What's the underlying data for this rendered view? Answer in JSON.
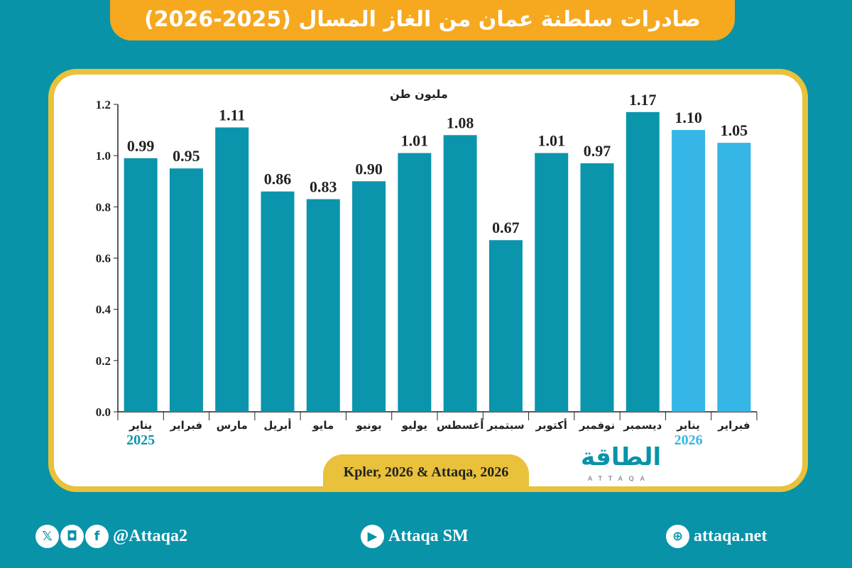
{
  "title": "صادرات سلطنة عمان من الغاز المسال (2025-2026)",
  "chart_data": {
    "type": "bar",
    "title": "صادرات سلطنة عمان من الغاز المسال (2025-2026)",
    "ylabel": "مليون طن",
    "xlabel": "",
    "ylim": [
      0,
      1.2
    ],
    "yticks": [
      "0.0",
      "0.2",
      "0.4",
      "0.6",
      "0.8",
      "1.0",
      "1.2"
    ],
    "categories": [
      "يناير",
      "فبراير",
      "مارس",
      "أبريل",
      "مايو",
      "يونيو",
      "يوليو",
      "أغسطس",
      "سبتمبر",
      "أكتوبر",
      "نوفمبر",
      "ديسمبر",
      "يناير",
      "فبراير"
    ],
    "values": [
      0.99,
      0.95,
      1.11,
      0.86,
      0.83,
      0.9,
      1.01,
      1.08,
      0.67,
      1.01,
      0.97,
      1.17,
      1.1,
      1.05
    ],
    "labels": [
      "0.99",
      "0.95",
      "1.11",
      "0.86",
      "0.83",
      "0.90",
      "1.01",
      "1.08",
      "0.67",
      "1.01",
      "0.97",
      "1.17",
      "1.10",
      "1.05"
    ],
    "year_labels": [
      {
        "index": 0,
        "text": "2025"
      },
      {
        "index": 12,
        "text": "2026"
      }
    ],
    "colors": {
      "2025": "#0a95ad",
      "2026": "#35b6e6"
    },
    "grid": false
  },
  "source": "Kpler, 2026 & Attaqa, 2026",
  "logo": {
    "arabic": "الطاقة",
    "english": "ATTAQA"
  },
  "footer": {
    "social_handle": "@Attaqa2",
    "youtube": "Attaqa SM",
    "website": "attaqa.net"
  },
  "icons": [
    "x-icon",
    "instagram-icon",
    "facebook-icon",
    "youtube-icon",
    "globe-icon"
  ]
}
